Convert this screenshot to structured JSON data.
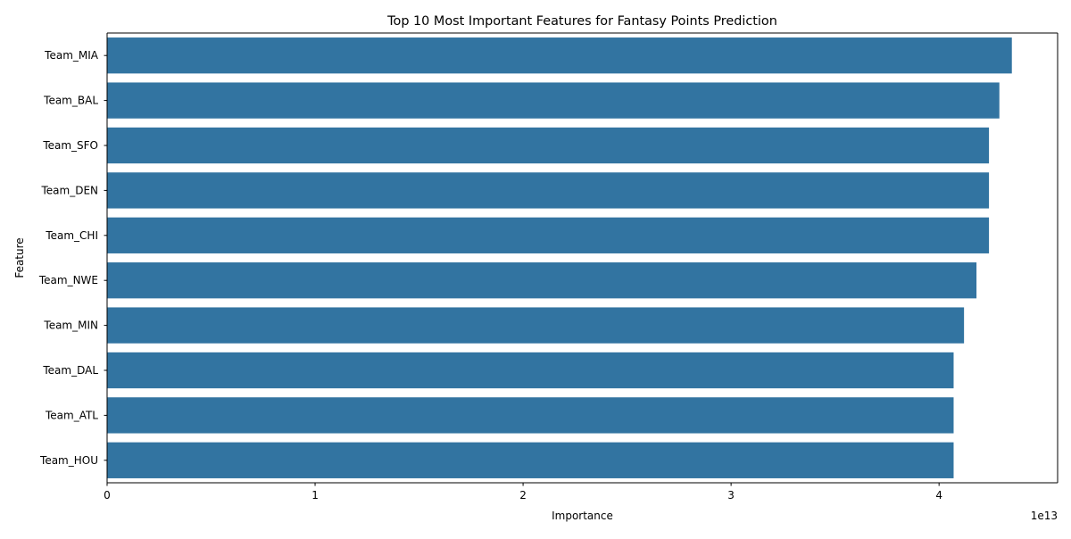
{
  "chart_data": {
    "type": "bar",
    "orientation": "horizontal",
    "title": "Top 10 Most Important Features for Fantasy Points Prediction",
    "xlabel": "Importance",
    "ylabel": "Feature",
    "x_offset_label": "1e13",
    "x_scale": 10000000000000.0,
    "xlim": [
      0,
      4.57
    ],
    "x_ticks": [
      0,
      1,
      2,
      3,
      4
    ],
    "x_tick_labels": [
      "0",
      "1",
      "2",
      "3",
      "4"
    ],
    "grid": false,
    "bar_color": "#3274a1",
    "categories": [
      "Team_MIA",
      "Team_BAL",
      "Team_SFO",
      "Team_DEN",
      "Team_CHI",
      "Team_NWE",
      "Team_MIN",
      "Team_DAL",
      "Team_ATL",
      "Team_HOU"
    ],
    "values": [
      4.35,
      4.29,
      4.24,
      4.24,
      4.24,
      4.18,
      4.12,
      4.07,
      4.07,
      4.07
    ]
  }
}
